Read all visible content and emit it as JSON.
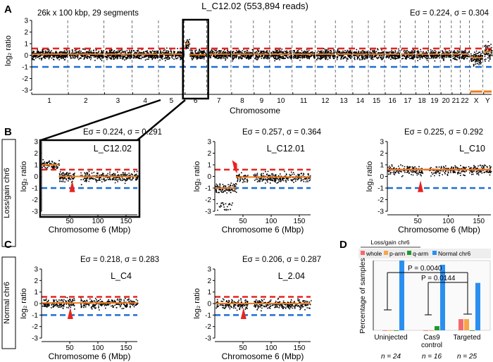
{
  "panel_letters": {
    "a": "A",
    "b": "B",
    "c": "C",
    "d": "D"
  },
  "colors": {
    "black": "#000000",
    "orange": "#f07a1a",
    "red": "#e8241f",
    "blue": "#1f6fd1",
    "bar_whole": "#f46a6a",
    "bar_parm": "#f7a54a",
    "bar_qarm": "#1f9a2a",
    "bar_normal": "#2b8ff0"
  },
  "panelA": {
    "header_left": "26k x 100 kbp, 29 segments",
    "title": "L_C12.02 (553,894 reads)",
    "header_right": "Eσ = 0.224, σ = 0.304",
    "ylabel": "log₂ ratio",
    "xlabel": "Chromosome",
    "yticks": [
      "3",
      "2",
      "1",
      "0",
      "-1",
      "-2",
      "-3"
    ],
    "chromosomes": [
      "1",
      "2",
      "3",
      "4",
      "5",
      "6",
      "7",
      "8",
      "9",
      "10",
      "11",
      "12",
      "13",
      "14",
      "15",
      "16",
      "17",
      "18",
      "19",
      "20",
      "21",
      "22",
      "X",
      "Y"
    ]
  },
  "row_labels": {
    "b": "Loss/gain chr6",
    "c": "Normal chr6"
  },
  "small_plots": [
    {
      "id": "b1",
      "stats": "Eσ = 0.224, σ = 0.291",
      "sample": "L_C12.02",
      "xlabel": "Chromosome 6 (Mbp)",
      "ylabel": "log₂ ratio"
    },
    {
      "id": "b2",
      "stats": "Eσ = 0.257, σ = 0.364",
      "sample": "L_C12.01",
      "xlabel": "Chromosome 6 (Mbp)",
      "ylabel": "log₂ ratio"
    },
    {
      "id": "b3",
      "stats": "Eσ = 0.225, σ = 0.292",
      "sample": "L_C10",
      "xlabel": "Chromosome 6 (Mbp)",
      "ylabel": "log₂ ratio"
    },
    {
      "id": "c1",
      "stats": "Eσ = 0.218, σ = 0.283",
      "sample": "L_C4",
      "xlabel": "Chromosome 6 (Mbp)",
      "ylabel": "log₂ ratio"
    },
    {
      "id": "c2",
      "stats": "Eσ = 0.206, σ = 0.287",
      "sample": "L_2.04",
      "xlabel": "Chromosome 6 (Mbp)",
      "ylabel": "log₂ ratio"
    }
  ],
  "small_xticks": [
    "50",
    "100",
    "150"
  ],
  "small_yticks": [
    "3",
    "2",
    "1",
    "0",
    "-1",
    "-2",
    "-3"
  ],
  "panelD": {
    "legend_title": "Loss/gain chr6",
    "legend": [
      "whole",
      "p-arm",
      "q-arm",
      "Normal chr6"
    ],
    "ylabel": "Percentage of samples",
    "pvalue1": "P = 0.0040",
    "pvalue2": "P = 0.0144",
    "groups": [
      "Uninjected",
      "Cas9 control",
      "Targeted"
    ],
    "ns": [
      "n = 24",
      "n = 16",
      "n = 25"
    ]
  },
  "chart_data": {
    "type": "bar",
    "title": "",
    "ylabel": "Percentage of samples",
    "categories": [
      "Uninjected",
      "Cas9 control",
      "Targeted"
    ],
    "series": [
      {
        "name": "whole",
        "values": [
          0,
          0,
          16
        ]
      },
      {
        "name": "p-arm",
        "values": [
          0,
          0,
          16
        ]
      },
      {
        "name": "q-arm",
        "values": [
          0,
          6,
          0
        ]
      },
      {
        "name": "Normal chr6",
        "values": [
          100,
          94,
          68
        ]
      }
    ],
    "ylim": [
      0,
      100
    ]
  }
}
